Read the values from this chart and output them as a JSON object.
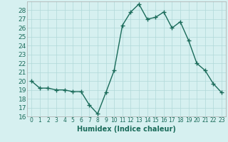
{
  "x": [
    0,
    1,
    2,
    3,
    4,
    5,
    6,
    7,
    8,
    9,
    10,
    11,
    12,
    13,
    14,
    15,
    16,
    17,
    18,
    19,
    20,
    21,
    22,
    23
  ],
  "y": [
    20,
    19.2,
    19.2,
    19,
    19,
    18.8,
    18.8,
    17.3,
    16.3,
    18.7,
    21.2,
    26.3,
    27.8,
    28.7,
    27,
    27.2,
    27.8,
    26,
    26.7,
    24.6,
    22,
    21.2,
    19.7,
    18.7
  ],
  "line_color": "#1a6b5a",
  "marker": "+",
  "marker_size": 4,
  "bg_color": "#d6f0f0",
  "grid_color": "#b0d8d8",
  "xlabel": "Humidex (Indice chaleur)",
  "ylim": [
    16,
    29
  ],
  "xlim": [
    -0.5,
    23.5
  ],
  "yticks": [
    16,
    17,
    18,
    19,
    20,
    21,
    22,
    23,
    24,
    25,
    26,
    27,
    28
  ],
  "xticks": [
    0,
    1,
    2,
    3,
    4,
    5,
    6,
    7,
    8,
    9,
    10,
    11,
    12,
    13,
    14,
    15,
    16,
    17,
    18,
    19,
    20,
    21,
    22,
    23
  ],
  "xlabel_fontsize": 7,
  "tick_fontsize": 6,
  "line_width": 1.0
}
